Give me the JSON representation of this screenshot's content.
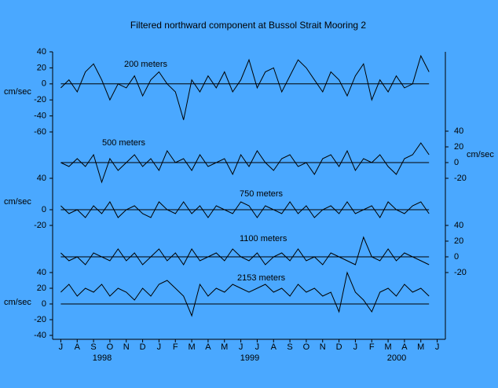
{
  "chart_data": {
    "type": "line",
    "title": "Filtered northward component at Bussol Strait Mooring 2",
    "categories": [
      "J",
      "A",
      "S",
      "O",
      "N",
      "D",
      "J",
      "F",
      "M",
      "A",
      "M",
      "J",
      "J",
      "A",
      "S",
      "O",
      "N",
      "D",
      "J",
      "F",
      "M",
      "A",
      "M",
      "J"
    ],
    "year_labels": [
      "1998",
      "1999",
      "2000"
    ],
    "xlim": [
      -0.5,
      23.5
    ],
    "x": [
      0,
      0.5,
      1,
      1.5,
      2,
      2.5,
      3,
      3.5,
      4,
      4.5,
      5,
      5.5,
      6,
      6.5,
      7,
      7.5,
      8,
      8.5,
      9,
      9.5,
      10,
      10.5,
      11,
      11.5,
      12,
      12.5,
      13,
      13.5,
      14,
      14.5,
      15,
      15.5,
      16,
      16.5,
      17,
      17.5,
      18,
      18.5,
      19,
      19.5,
      20,
      20.5,
      21,
      21.5,
      22,
      22.5
    ],
    "color": "#000000",
    "series": [
      {
        "name": "200 meters",
        "side": "left",
        "ylabel": "cm/sec",
        "ylim": [
          -60,
          40
        ],
        "yticks": [
          40,
          20,
          0,
          -20,
          -40,
          -60
        ],
        "values": [
          -5,
          5,
          -10,
          15,
          25,
          5,
          -20,
          0,
          -5,
          10,
          -15,
          5,
          15,
          0,
          -10,
          -45,
          5,
          -10,
          10,
          -5,
          15,
          -10,
          5,
          30,
          -5,
          15,
          20,
          -10,
          10,
          30,
          20,
          5,
          -10,
          15,
          5,
          -15,
          10,
          25,
          -20,
          5,
          -10,
          10,
          -5,
          0,
          35,
          15
        ]
      },
      {
        "name": "500 meters",
        "side": "right",
        "ylabel": "cm/sec",
        "ylim": [
          -20,
          40
        ],
        "yticks": [
          40,
          20,
          0,
          -20
        ],
        "values": [
          0,
          -5,
          5,
          -5,
          10,
          -25,
          5,
          -10,
          0,
          10,
          -5,
          5,
          -10,
          15,
          0,
          5,
          -10,
          10,
          -5,
          0,
          5,
          -15,
          10,
          -5,
          15,
          0,
          -10,
          5,
          10,
          -5,
          0,
          -15,
          5,
          10,
          -5,
          15,
          -10,
          5,
          0,
          10,
          -5,
          -15,
          5,
          10,
          25,
          10
        ]
      },
      {
        "name": "750 meters",
        "side": "left",
        "ylabel": "cm/sec",
        "ylim": [
          -20,
          40
        ],
        "yticks": [
          40,
          0,
          -20
        ],
        "values": [
          5,
          -5,
          0,
          -10,
          5,
          -5,
          10,
          -10,
          0,
          5,
          -5,
          -10,
          10,
          0,
          -5,
          10,
          -5,
          5,
          -10,
          5,
          0,
          -5,
          10,
          5,
          -10,
          5,
          0,
          -5,
          10,
          -5,
          5,
          -10,
          0,
          5,
          -5,
          10,
          -5,
          0,
          5,
          -10,
          10,
          0,
          -5,
          5,
          10,
          -5
        ]
      },
      {
        "name": "1100 meters",
        "side": "right",
        "ylim": [
          -20,
          40
        ],
        "yticks": [
          40,
          20,
          0,
          -20
        ],
        "values": [
          5,
          -5,
          0,
          -10,
          5,
          0,
          -5,
          10,
          -5,
          5,
          -10,
          0,
          10,
          -5,
          5,
          -10,
          10,
          -5,
          0,
          5,
          -5,
          10,
          0,
          -5,
          5,
          -10,
          0,
          5,
          -5,
          10,
          -5,
          0,
          -10,
          5,
          0,
          -5,
          -10,
          25,
          0,
          -5,
          10,
          -5,
          5,
          0,
          -5,
          -10
        ]
      },
      {
        "name": "2153 meters",
        "side": "left",
        "ylabel": "cm/sec",
        "ylim": [
          -40,
          40
        ],
        "yticks": [
          40,
          20,
          0,
          -20,
          -40
        ],
        "values": [
          15,
          25,
          10,
          20,
          15,
          25,
          10,
          20,
          15,
          5,
          20,
          10,
          25,
          30,
          20,
          10,
          -15,
          25,
          10,
          20,
          15,
          25,
          20,
          15,
          20,
          25,
          15,
          20,
          10,
          25,
          15,
          20,
          10,
          15,
          -10,
          40,
          15,
          5,
          -10,
          15,
          20,
          10,
          25,
          15,
          20,
          10
        ]
      }
    ]
  }
}
